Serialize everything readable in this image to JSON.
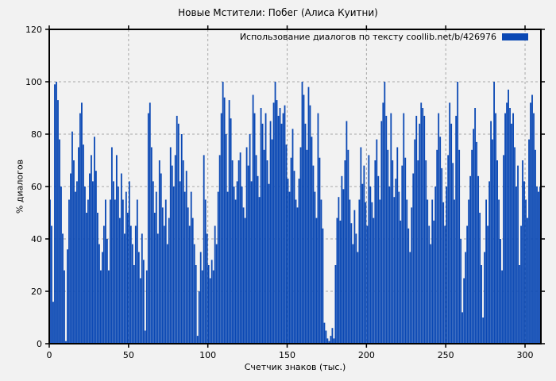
{
  "figure": {
    "background": "#f2f2f2",
    "frame_color": "#000000",
    "grid_color": "#a8a8a8",
    "tick_color": "#000000"
  },
  "chart_data": {
    "type": "bar",
    "title": "Новые Мстители: Побег (Алиса Куитни)",
    "legend": "Использование диалогов по тексту  coollib.net/b/426976",
    "xlabel": "Счетчик знаков (тыс.)",
    "ylabel": "% диалогов",
    "bar_color": "#0a48b4",
    "grid": true,
    "legend_position": "top-right",
    "xlim": [
      0,
      310
    ],
    "ylim": [
      0,
      120
    ],
    "x_ticks": [
      0,
      50,
      100,
      150,
      200,
      250,
      300
    ],
    "y_ticks": [
      0,
      20,
      40,
      60,
      80,
      100,
      120
    ],
    "x_units": "thousand characters",
    "values": [
      55,
      45,
      16,
      99,
      100,
      93,
      78,
      60,
      42,
      28,
      1,
      36,
      55,
      65,
      81,
      70,
      58,
      62,
      75,
      88,
      92,
      76,
      60,
      50,
      55,
      65,
      72,
      62,
      79,
      66,
      50,
      38,
      28,
      35,
      45,
      55,
      40,
      28,
      55,
      75,
      62,
      55,
      72,
      60,
      48,
      65,
      55,
      42,
      58,
      50,
      62,
      45,
      38,
      30,
      45,
      55,
      35,
      25,
      42,
      32,
      5,
      28,
      88,
      92,
      75,
      62,
      50,
      58,
      42,
      70,
      65,
      52,
      45,
      55,
      38,
      48,
      75,
      68,
      60,
      72,
      87,
      84,
      62,
      80,
      70,
      58,
      66,
      52,
      45,
      58,
      48,
      38,
      30,
      3,
      20,
      35,
      28,
      72,
      55,
      42,
      30,
      25,
      32,
      28,
      45,
      38,
      58,
      72,
      88,
      100,
      94,
      80,
      58,
      93,
      86,
      70,
      60,
      55,
      62,
      70,
      73,
      60,
      52,
      48,
      75,
      68,
      80,
      62,
      95,
      88,
      72,
      64,
      56,
      90,
      84,
      74,
      88,
      70,
      61,
      85,
      78,
      92,
      100,
      93,
      87,
      90,
      84,
      88,
      91,
      76,
      63,
      58,
      71,
      82,
      66,
      55,
      52,
      63,
      75,
      100,
      95,
      84,
      74,
      98,
      91,
      79,
      68,
      58,
      48,
      88,
      71,
      55,
      44,
      8,
      5,
      2,
      1,
      3,
      6,
      2,
      30,
      48,
      56,
      47,
      64,
      59,
      70,
      85,
      74,
      55,
      46,
      38,
      51,
      42,
      35,
      55,
      75,
      61,
      68,
      54,
      45,
      72,
      60,
      54,
      48,
      70,
      78,
      64,
      55,
      85,
      92,
      100,
      87,
      74,
      60,
      88,
      70,
      56,
      63,
      75,
      58,
      47,
      68,
      88,
      71,
      55,
      44,
      35,
      52,
      65,
      78,
      87,
      70,
      84,
      92,
      90,
      87,
      70,
      55,
      45,
      38,
      55,
      47,
      60,
      74,
      88,
      79,
      67,
      54,
      45,
      60,
      72,
      92,
      84,
      69,
      55,
      87,
      100,
      74,
      40,
      12,
      25,
      35,
      45,
      55,
      64,
      74,
      82,
      90,
      77,
      64,
      50,
      30,
      10,
      35,
      55,
      45,
      62,
      85,
      78,
      100,
      88,
      70,
      55,
      40,
      28,
      72,
      88,
      92,
      97,
      90,
      84,
      88,
      75,
      60,
      68,
      30,
      45,
      70,
      62,
      55,
      48,
      78,
      92,
      95,
      88,
      74,
      60,
      58,
      60
    ]
  }
}
